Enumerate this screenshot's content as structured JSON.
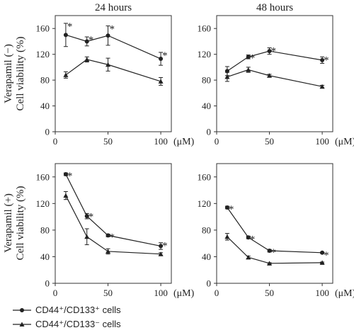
{
  "row_labels": [
    {
      "line1": "Verapamil (−)",
      "line2": "Cell viability (%)"
    },
    {
      "line1": "Verapamil (+)",
      "line2": "Cell viability (%)"
    }
  ],
  "x_unit": "(μM)",
  "legend": [
    {
      "label": "CD44⁺/CD133⁺ cells",
      "marker": "circle"
    },
    {
      "label": "CD44⁺/CD133⁻ cells",
      "marker": "triangle"
    }
  ],
  "chart_data": [
    {
      "type": "line",
      "title": "24 hours",
      "xlim": [
        0,
        110
      ],
      "ylim": [
        0,
        180
      ],
      "xticks": [
        0,
        50,
        100
      ],
      "yticks": [
        0,
        40,
        80,
        120,
        160
      ],
      "x": [
        10,
        30,
        50,
        100
      ],
      "series": [
        {
          "name": "CD44⁺/CD133⁺ cells",
          "marker": "circle",
          "values": [
            150,
            140,
            149,
            113
          ],
          "errors": [
            18,
            7,
            15,
            10
          ],
          "star": [
            true,
            true,
            true,
            true
          ]
        },
        {
          "name": "CD44⁺/CD133⁻ cells",
          "marker": "triangle",
          "values": [
            88,
            112,
            104,
            78
          ],
          "errors": [
            5,
            4,
            10,
            6
          ],
          "star": [
            false,
            false,
            false,
            false
          ]
        }
      ]
    },
    {
      "type": "line",
      "title": "48 hours",
      "xlim": [
        0,
        110
      ],
      "ylim": [
        0,
        180
      ],
      "xticks": [
        0,
        50,
        100
      ],
      "yticks": [
        0,
        40,
        80,
        120,
        160
      ],
      "x": [
        10,
        30,
        50,
        100
      ],
      "series": [
        {
          "name": "CD44⁺/CD133⁺ cells",
          "marker": "circle",
          "values": [
            94,
            116,
            125,
            111
          ],
          "errors": [
            7,
            3,
            5,
            5
          ],
          "star": [
            false,
            true,
            true,
            true
          ]
        },
        {
          "name": "CD44⁺/CD133⁻ cells",
          "marker": "triangle",
          "values": [
            85,
            96,
            87,
            70
          ],
          "errors": [
            7,
            4,
            2,
            2
          ],
          "star": [
            false,
            false,
            false,
            false
          ]
        }
      ]
    },
    {
      "type": "line",
      "title": "",
      "xlim": [
        0,
        110
      ],
      "ylim": [
        0,
        180
      ],
      "xticks": [
        0,
        50,
        100
      ],
      "yticks": [
        0,
        40,
        80,
        120,
        160
      ],
      "x": [
        10,
        30,
        50,
        100
      ],
      "series": [
        {
          "name": "CD44⁺/CD133⁺ cells",
          "marker": "circle",
          "values": [
            164,
            101,
            72,
            56
          ],
          "errors": [
            2,
            4,
            2,
            5
          ],
          "star": [
            true,
            true,
            true,
            true
          ]
        },
        {
          "name": "CD44⁺/CD133⁻ cells",
          "marker": "triangle",
          "values": [
            132,
            70,
            48,
            44
          ],
          "errors": [
            6,
            12,
            4,
            2
          ],
          "star": [
            false,
            false,
            false,
            false
          ]
        }
      ]
    },
    {
      "type": "line",
      "title": "",
      "xlim": [
        0,
        110
      ],
      "ylim": [
        0,
        180
      ],
      "xticks": [
        0,
        50,
        100
      ],
      "yticks": [
        0,
        40,
        80,
        120,
        160
      ],
      "x": [
        10,
        30,
        50,
        100
      ],
      "series": [
        {
          "name": "CD44⁺/CD133⁺ cells",
          "marker": "circle",
          "values": [
            114,
            69,
            49,
            46
          ],
          "errors": [
            2,
            2,
            2,
            1
          ],
          "star": [
            true,
            true,
            true,
            true
          ]
        },
        {
          "name": "CD44⁺/CD133⁻ cells",
          "marker": "triangle",
          "values": [
            70,
            39,
            30,
            31
          ],
          "errors": [
            5,
            2,
            1,
            1
          ],
          "star": [
            false,
            false,
            false,
            false
          ]
        }
      ]
    }
  ]
}
